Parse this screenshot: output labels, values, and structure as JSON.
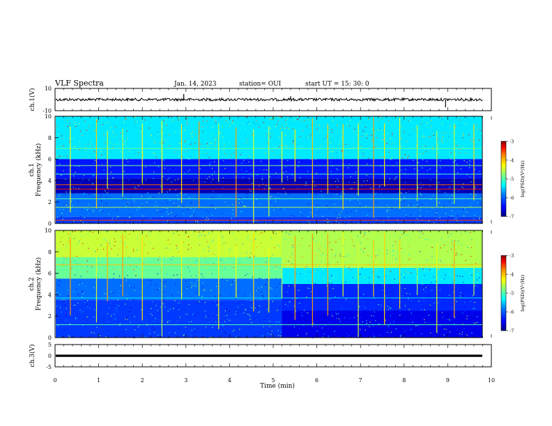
{
  "header": {
    "title": "VLF Spectra",
    "date": "Jan. 14, 2023",
    "station": "station= OUI",
    "start_time": "start UT = 15: 30: 0"
  },
  "chart_data": [
    {
      "type": "line",
      "panel": "ch1-waveform",
      "ylabel": "ch.1(V)",
      "ylim": [
        -10,
        10
      ],
      "yticks": [
        "10",
        "-10"
      ],
      "xlim": [
        0,
        10
      ],
      "baseline_value": 0,
      "spikes": [
        {
          "x": 2.95,
          "y": 5
        },
        {
          "x": 5.4,
          "y": 3
        },
        {
          "x": 8.95,
          "y": -7
        }
      ]
    },
    {
      "type": "heatmap",
      "panel": "ch1-spectrogram",
      "ylabel": "ch.1 Frequency (kHz)",
      "ylim": [
        0,
        10
      ],
      "yticks": [
        "0",
        "2",
        "4",
        "6",
        "8",
        "10"
      ],
      "xlim": [
        0,
        10
      ],
      "colorbar": {
        "label": "log(PSD)(V²/Hz)",
        "range": [
          -7,
          -3
        ],
        "ticks": [
          "-3",
          "-4",
          "-5",
          "-6",
          "-7"
        ]
      },
      "bands_khz": [
        {
          "f_low": 6,
          "f_high": 10,
          "level": -5.4
        },
        {
          "f_low": 4.2,
          "f_high": 6,
          "level": -6.4
        },
        {
          "f_low": 2.8,
          "f_high": 4.2,
          "level": -6.8
        },
        {
          "f_low": 0.6,
          "f_high": 2.8,
          "level": -5.9
        },
        {
          "f_low": 0,
          "f_high": 0.6,
          "level": -6.2
        }
      ],
      "lines_khz": [
        {
          "f": 0.3,
          "level": -3.5
        },
        {
          "f": 1.5,
          "level": -4.6
        },
        {
          "f": 2.3,
          "level": -5.0
        },
        {
          "f": 3.2,
          "level": -3.4
        },
        {
          "f": 3.6,
          "level": -3.6
        },
        {
          "f": 4.6,
          "level": -5.0
        },
        {
          "f": 5.4,
          "level": -4.8
        },
        {
          "f": 7.0,
          "level": -4.9
        }
      ],
      "sferics_min": [
        0.35,
        0.95,
        1.2,
        1.55,
        2.0,
        2.45,
        2.9,
        3.3,
        3.75,
        4.15,
        4.55,
        4.9,
        5.2,
        5.5,
        5.9,
        6.25,
        6.6,
        6.95,
        7.3,
        7.55,
        7.9,
        8.3,
        8.75,
        9.15,
        9.6
      ]
    },
    {
      "type": "heatmap",
      "panel": "ch2-spectrogram",
      "ylabel": "ch.2 Frequency (kHz)",
      "ylim": [
        0,
        10
      ],
      "yticks": [
        "0",
        "2",
        "4",
        "6",
        "8",
        "10"
      ],
      "xlim": [
        0,
        10
      ],
      "colorbar": {
        "label": "log(PSD)(V²/Hz)",
        "range": [
          -7,
          -3
        ],
        "ticks": [
          "-3",
          "-4",
          "-5",
          "-6",
          "-7"
        ]
      },
      "bands_khz_before_5_2_min": [
        {
          "f_low": 7.5,
          "f_high": 10,
          "level": -4.5
        },
        {
          "f_low": 5.5,
          "f_high": 7.5,
          "level": -4.9
        },
        {
          "f_low": 3.5,
          "f_high": 5.5,
          "level": -5.9
        },
        {
          "f_low": 0,
          "f_high": 3.5,
          "level": -6.2
        }
      ],
      "bands_khz_after_5_2_min": [
        {
          "f_low": 6.5,
          "f_high": 10,
          "level": -4.6
        },
        {
          "f_low": 5,
          "f_high": 6.5,
          "level": -5.4
        },
        {
          "f_low": 2.5,
          "f_high": 5,
          "level": -6.3
        },
        {
          "f_low": 0,
          "f_high": 2.5,
          "level": -6.6
        }
      ],
      "lines_khz": [
        {
          "f": 1.2,
          "level": -5.0
        },
        {
          "f": 3.7,
          "level": -5.4
        },
        {
          "f": 6.8,
          "level": -4.0
        }
      ],
      "sferics_min": [
        0.35,
        0.95,
        1.2,
        1.55,
        2.0,
        2.45,
        2.9,
        3.3,
        3.75,
        4.15,
        4.55,
        4.9,
        5.2,
        5.5,
        5.9,
        6.25,
        6.6,
        6.95,
        7.3,
        7.55,
        7.9,
        8.3,
        8.75,
        9.15,
        9.6
      ]
    },
    {
      "type": "line",
      "panel": "ch3-waveform",
      "ylabel": "ch.3(V)",
      "ylim": [
        -5,
        5
      ],
      "yticks": [
        "5",
        "0",
        "-5"
      ],
      "xlim": [
        0,
        10
      ],
      "baseline_value": 0
    }
  ],
  "xaxis": {
    "label": "Time (min)",
    "ticks": [
      "0",
      "1",
      "2",
      "3",
      "4",
      "5",
      "6",
      "7",
      "8",
      "9",
      "10"
    ]
  },
  "colors": {
    "colormap": [
      "#000080",
      "#0000ff",
      "#0080ff",
      "#00ffff",
      "#80ff80",
      "#ffff00",
      "#ff8000",
      "#ff0000",
      "#800000"
    ]
  }
}
